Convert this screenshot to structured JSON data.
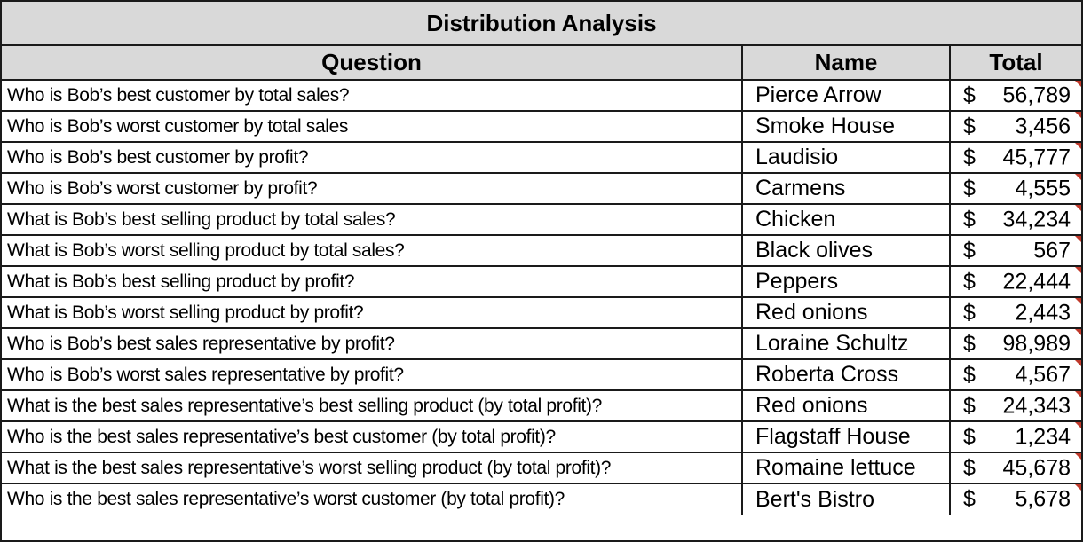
{
  "title": "Distribution Analysis",
  "headers": {
    "question": "Question",
    "name": "Name",
    "total": "Total"
  },
  "currency_symbol": "$",
  "rows": [
    {
      "question": "Who is Bob’s best customer by total sales?",
      "name": "Pierce Arrow",
      "total": "56,789"
    },
    {
      "question": "Who is Bob’s worst customer by total sales",
      "name": "Smoke House",
      "total": "3,456"
    },
    {
      "question": "Who is Bob’s best customer by profit?",
      "name": "Laudisio",
      "total": "45,777"
    },
    {
      "question": "Who is Bob’s worst customer by profit?",
      "name": "Carmens",
      "total": "4,555"
    },
    {
      "question": "What is Bob’s best selling product by total sales?",
      "name": "Chicken",
      "total": "34,234"
    },
    {
      "question": "What is Bob’s worst selling product by total sales?",
      "name": "Black olives",
      "total": "567"
    },
    {
      "question": "What is Bob’s best selling product by profit?",
      "name": "Peppers",
      "total": "22,444"
    },
    {
      "question": "What is Bob’s worst selling product by profit?",
      "name": "Red onions",
      "total": "2,443"
    },
    {
      "question": "Who is Bob’s best sales representative by profit?",
      "name": "Loraine Schultz",
      "total": "98,989"
    },
    {
      "question": "Who is Bob’s worst sales representative by profit?",
      "name": "Roberta Cross",
      "total": "4,567"
    },
    {
      "question": "What is the best sales representative’s best selling product (by total profit)?",
      "name": "Red onions",
      "total": "24,343"
    },
    {
      "question": "Who is the best sales representative’s best customer (by total profit)?",
      "name": "Flagstaff House",
      "total": "1,234"
    },
    {
      "question": "What is the best sales representative’s worst selling product (by total profit)?",
      "name": "Romaine lettuce",
      "total": "45,678"
    },
    {
      "question": "Who is the best sales representative’s worst customer (by total profit)?",
      "name": "Bert's Bistro",
      "total": "5,678"
    }
  ]
}
